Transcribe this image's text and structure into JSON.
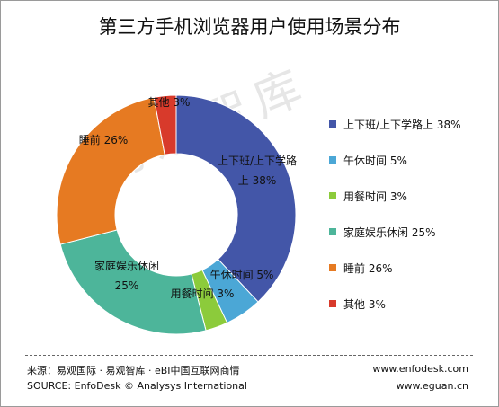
{
  "chart_data": {
    "type": "pie",
    "title": "第三方手机浏览器用户使用场景分布",
    "donut": true,
    "slices": [
      {
        "name": "上下班/上下学路上",
        "value": 38,
        "color": "#4356A8",
        "label_line1": "上下班/上下学路",
        "label_line2": "上 38%",
        "legend": "上下班/上下学路上 38%"
      },
      {
        "name": "午休时间",
        "value": 5,
        "color": "#4BA7D6",
        "label_line1": "午休时间 5%",
        "label_line2": "",
        "legend": "午休时间 5%"
      },
      {
        "name": "用餐时间",
        "value": 3,
        "color": "#8CCB3B",
        "label_line1": "用餐时间 3%",
        "label_line2": "",
        "legend": "用餐时间 3%"
      },
      {
        "name": "家庭娱乐休闲",
        "value": 25,
        "color": "#4DB59A",
        "label_line1": "家庭娱乐休闲",
        "label_line2": "25%",
        "legend": "家庭娱乐休闲 25%"
      },
      {
        "name": "睡前",
        "value": 26,
        "color": "#E67A22",
        "label_line1": "睡前 26%",
        "label_line2": "",
        "legend": "睡前 26%"
      },
      {
        "name": "其他",
        "value": 3,
        "color": "#D83A2B",
        "label_line1": "其他 3%",
        "label_line2": "",
        "legend": "其他 3%"
      }
    ],
    "legend_position": "right"
  },
  "watermark": "易观智库",
  "footer": {
    "source_cn": "来源：易观国际 · 易观智库 · eBI中国互联网商情",
    "source_en": "SOURCE: EnfoDesk © Analysys International",
    "url1": "www.enfodesk.com",
    "url2": "www.eguan.cn"
  }
}
